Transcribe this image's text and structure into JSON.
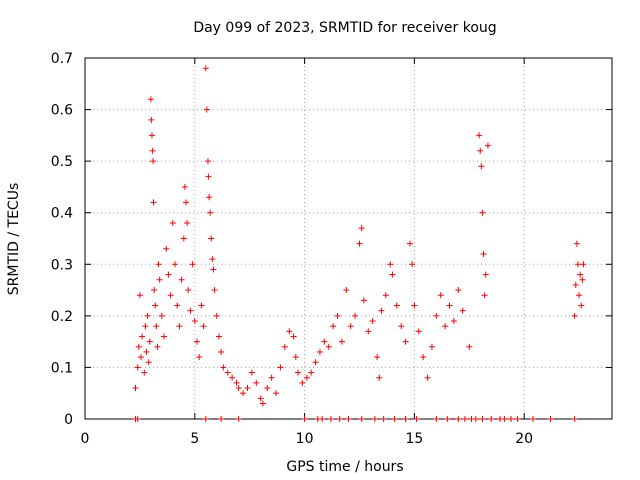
{
  "chart_data": {
    "type": "scatter",
    "title": "Day 099 of 2023, SRMTID for receiver koug",
    "xlabel": "GPS time / hours",
    "ylabel": "SRMTID / TECUs",
    "xlim": [
      0,
      24
    ],
    "ylim": [
      0,
      0.7
    ],
    "xticks": [
      "0",
      "5",
      "10",
      "15",
      "20"
    ],
    "yticks": [
      "0",
      "0.1",
      "0.2",
      "0.3",
      "0.4",
      "0.5",
      "0.6",
      "0.7"
    ],
    "grid": true,
    "marker": "+",
    "color": "#ff0000",
    "series": [
      {
        "points": [
          [
            2.3,
            0.06
          ],
          [
            2.4,
            0.1
          ],
          [
            2.45,
            0.14
          ],
          [
            2.5,
            0.24
          ],
          [
            2.55,
            0.12
          ],
          [
            2.6,
            0.16
          ],
          [
            2.7,
            0.09
          ],
          [
            2.75,
            0.18
          ],
          [
            2.8,
            0.13
          ],
          [
            2.85,
            0.2
          ],
          [
            2.9,
            0.11
          ],
          [
            2.95,
            0.15
          ],
          [
            3.0,
            0.62
          ],
          [
            3.02,
            0.58
          ],
          [
            3.05,
            0.55
          ],
          [
            3.08,
            0.52
          ],
          [
            3.1,
            0.5
          ],
          [
            3.12,
            0.42
          ],
          [
            3.15,
            0.25
          ],
          [
            3.2,
            0.22
          ],
          [
            3.25,
            0.18
          ],
          [
            3.3,
            0.14
          ],
          [
            3.35,
            0.3
          ],
          [
            3.4,
            0.27
          ],
          [
            3.5,
            0.2
          ],
          [
            3.6,
            0.16
          ],
          [
            3.7,
            0.33
          ],
          [
            3.8,
            0.28
          ],
          [
            3.9,
            0.24
          ],
          [
            4.0,
            0.38
          ],
          [
            4.1,
            0.3
          ],
          [
            4.2,
            0.22
          ],
          [
            4.3,
            0.18
          ],
          [
            4.4,
            0.27
          ],
          [
            4.5,
            0.35
          ],
          [
            4.55,
            0.45
          ],
          [
            4.6,
            0.42
          ],
          [
            4.65,
            0.38
          ],
          [
            4.7,
            0.25
          ],
          [
            4.8,
            0.21
          ],
          [
            4.9,
            0.3
          ],
          [
            5.0,
            0.19
          ],
          [
            5.1,
            0.15
          ],
          [
            5.2,
            0.12
          ],
          [
            5.3,
            0.22
          ],
          [
            5.4,
            0.18
          ],
          [
            5.5,
            0.68
          ],
          [
            5.55,
            0.6
          ],
          [
            5.6,
            0.5
          ],
          [
            5.62,
            0.47
          ],
          [
            5.65,
            0.43
          ],
          [
            5.7,
            0.4
          ],
          [
            5.75,
            0.35
          ],
          [
            5.8,
            0.31
          ],
          [
            5.85,
            0.29
          ],
          [
            5.9,
            0.25
          ],
          [
            6.0,
            0.2
          ],
          [
            6.1,
            0.16
          ],
          [
            6.2,
            0.13
          ],
          [
            6.3,
            0.1
          ],
          [
            6.5,
            0.09
          ],
          [
            6.7,
            0.08
          ],
          [
            6.9,
            0.07
          ],
          [
            7.0,
            0.06
          ],
          [
            7.2,
            0.05
          ],
          [
            7.4,
            0.06
          ],
          [
            7.6,
            0.09
          ],
          [
            7.8,
            0.07
          ],
          [
            8.0,
            0.04
          ],
          [
            8.1,
            0.03
          ],
          [
            8.3,
            0.06
          ],
          [
            8.5,
            0.08
          ],
          [
            8.7,
            0.05
          ],
          [
            8.9,
            0.1
          ],
          [
            9.1,
            0.14
          ],
          [
            9.3,
            0.17
          ],
          [
            9.5,
            0.16
          ],
          [
            9.6,
            0.12
          ],
          [
            9.7,
            0.09
          ],
          [
            9.9,
            0.07
          ],
          [
            10.1,
            0.08
          ],
          [
            10.3,
            0.09
          ],
          [
            10.5,
            0.11
          ],
          [
            10.7,
            0.13
          ],
          [
            10.9,
            0.15
          ],
          [
            11.1,
            0.14
          ],
          [
            11.3,
            0.18
          ],
          [
            11.5,
            0.2
          ],
          [
            11.7,
            0.15
          ],
          [
            11.9,
            0.25
          ],
          [
            12.1,
            0.18
          ],
          [
            12.3,
            0.2
          ],
          [
            12.5,
            0.34
          ],
          [
            12.6,
            0.37
          ],
          [
            12.7,
            0.23
          ],
          [
            12.9,
            0.17
          ],
          [
            13.1,
            0.19
          ],
          [
            13.3,
            0.12
          ],
          [
            13.4,
            0.08
          ],
          [
            13.5,
            0.21
          ],
          [
            13.7,
            0.24
          ],
          [
            13.9,
            0.3
          ],
          [
            14.0,
            0.28
          ],
          [
            14.2,
            0.22
          ],
          [
            14.4,
            0.18
          ],
          [
            14.6,
            0.15
          ],
          [
            14.8,
            0.34
          ],
          [
            14.9,
            0.3
          ],
          [
            15.0,
            0.22
          ],
          [
            15.2,
            0.17
          ],
          [
            15.4,
            0.12
          ],
          [
            15.6,
            0.08
          ],
          [
            15.8,
            0.14
          ],
          [
            16.0,
            0.2
          ],
          [
            16.2,
            0.24
          ],
          [
            16.4,
            0.18
          ],
          [
            16.6,
            0.22
          ],
          [
            16.8,
            0.19
          ],
          [
            17.0,
            0.25
          ],
          [
            17.2,
            0.21
          ],
          [
            17.5,
            0.14
          ],
          [
            17.95,
            0.55
          ],
          [
            18.0,
            0.52
          ],
          [
            18.05,
            0.49
          ],
          [
            18.1,
            0.4
          ],
          [
            18.15,
            0.32
          ],
          [
            18.2,
            0.24
          ],
          [
            18.25,
            0.28
          ],
          [
            18.35,
            0.53
          ],
          [
            22.3,
            0.2
          ],
          [
            22.35,
            0.26
          ],
          [
            22.4,
            0.34
          ],
          [
            22.45,
            0.3
          ],
          [
            22.5,
            0.24
          ],
          [
            22.55,
            0.28
          ],
          [
            22.6,
            0.22
          ],
          [
            22.65,
            0.27
          ],
          [
            22.7,
            0.3
          ],
          [
            2.3,
            0
          ],
          [
            2.4,
            0
          ],
          [
            5.5,
            0
          ],
          [
            6.2,
            0
          ],
          [
            7.0,
            0
          ],
          [
            10.0,
            0
          ],
          [
            10.6,
            0
          ],
          [
            10.8,
            0
          ],
          [
            11.2,
            0
          ],
          [
            11.6,
            0
          ],
          [
            12.0,
            0
          ],
          [
            12.6,
            0
          ],
          [
            13.2,
            0
          ],
          [
            13.6,
            0
          ],
          [
            14.1,
            0
          ],
          [
            14.6,
            0
          ],
          [
            15.1,
            0
          ],
          [
            16.0,
            0
          ],
          [
            16.5,
            0
          ],
          [
            17.0,
            0
          ],
          [
            17.3,
            0
          ],
          [
            17.6,
            0
          ],
          [
            17.8,
            0
          ],
          [
            18.1,
            0
          ],
          [
            18.5,
            0
          ],
          [
            18.9,
            0
          ],
          [
            19.1,
            0
          ],
          [
            19.4,
            0
          ],
          [
            19.7,
            0
          ],
          [
            20.4,
            0
          ],
          [
            21.2,
            0
          ],
          [
            22.3,
            0
          ]
        ]
      }
    ]
  }
}
